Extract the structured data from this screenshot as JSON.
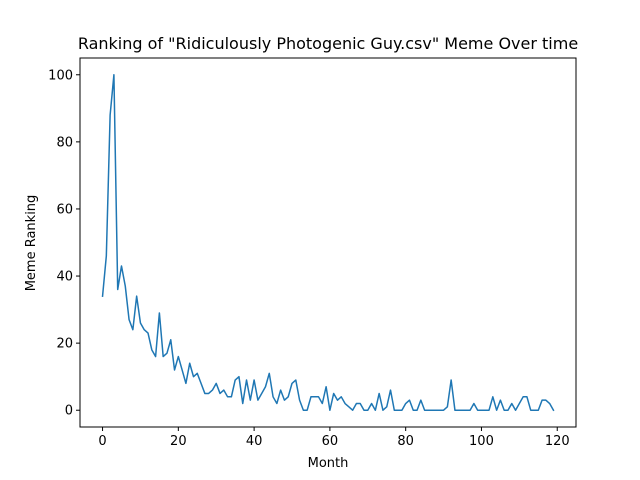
{
  "chart_data": {
    "type": "line",
    "title": "Ranking of \"Ridiculously Photogenic Guy.csv\" Meme Over time",
    "xlabel": "Month",
    "ylabel": "Meme Ranking",
    "xlim": [
      -5.95,
      124.95
    ],
    "ylim": [
      -5,
      105
    ],
    "xticks": [
      0,
      20,
      40,
      60,
      80,
      100,
      120
    ],
    "yticks": [
      0,
      20,
      40,
      60,
      80,
      100
    ],
    "grid": false,
    "line_color": "#1f77b4",
    "x": [
      0,
      1,
      2,
      3,
      4,
      5,
      6,
      7,
      8,
      9,
      10,
      11,
      12,
      13,
      14,
      15,
      16,
      17,
      18,
      19,
      20,
      21,
      22,
      23,
      24,
      25,
      26,
      27,
      28,
      29,
      30,
      31,
      32,
      33,
      34,
      35,
      36,
      37,
      38,
      39,
      40,
      41,
      42,
      43,
      44,
      45,
      46,
      47,
      48,
      49,
      50,
      51,
      52,
      53,
      54,
      55,
      56,
      57,
      58,
      59,
      60,
      61,
      62,
      63,
      64,
      65,
      66,
      67,
      68,
      69,
      70,
      71,
      72,
      73,
      74,
      75,
      76,
      77,
      78,
      79,
      80,
      81,
      82,
      83,
      84,
      85,
      86,
      87,
      88,
      89,
      90,
      91,
      92,
      93,
      94,
      95,
      96,
      97,
      98,
      99,
      100,
      101,
      102,
      103,
      104,
      105,
      106,
      107,
      108,
      109,
      110,
      111,
      112,
      113,
      114,
      115,
      116,
      117,
      118,
      119
    ],
    "y": [
      34,
      46,
      88,
      100,
      36,
      43,
      37,
      27,
      24,
      34,
      26,
      24,
      23,
      18,
      16,
      29,
      16,
      17,
      21,
      12,
      16,
      12,
      8,
      14,
      10,
      11,
      8,
      5,
      5,
      6,
      8,
      5,
      6,
      4,
      4,
      9,
      10,
      2,
      9,
      3,
      9,
      3,
      5,
      7,
      11,
      4,
      2,
      6,
      3,
      4,
      8,
      9,
      3,
      0,
      0,
      4,
      4,
      4,
      2,
      7,
      0,
      5,
      3,
      4,
      2,
      1,
      0,
      2,
      2,
      0,
      0,
      2,
      0,
      5,
      0,
      1,
      6,
      0,
      0,
      0,
      2,
      3,
      0,
      0,
      3,
      0,
      0,
      0,
      0,
      0,
      0,
      1,
      9,
      0,
      0,
      0,
      0,
      0,
      2,
      0,
      0,
      0,
      0,
      4,
      0,
      3,
      0,
      0,
      2,
      0,
      2,
      4,
      4,
      0,
      0,
      0,
      3,
      3,
      2,
      0
    ]
  }
}
